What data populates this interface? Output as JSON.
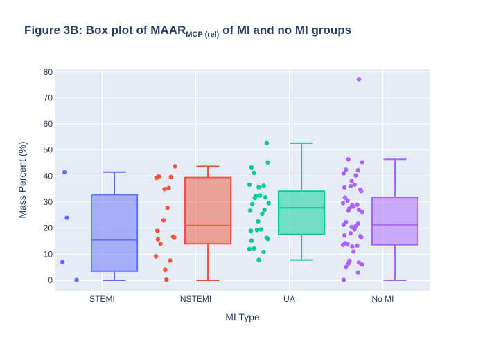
{
  "chart_title": {
    "prefix": "Figure 3B: Box plot of MAAR",
    "subscript": "MCP (rel)",
    "suffix": " of MI and no MI groups"
  },
  "chart_data": {
    "type": "box",
    "title": "Figure 3B: Box plot of MAAR MCP (rel) of MI and no MI groups",
    "xlabel": "MI Type",
    "ylabel": "Mass Percent (%)",
    "ylim": [
      -4,
      81
    ],
    "yticks": [
      0,
      10,
      20,
      30,
      40,
      50,
      60,
      70,
      80
    ],
    "grid": true,
    "legend": "none",
    "categories": [
      "STEMI",
      "NSTEMI",
      "UA",
      "No MI"
    ],
    "series": [
      {
        "category": "STEMI",
        "color": "#636efa",
        "min": 0,
        "q1": 3.5,
        "median": 15.5,
        "q3": 32.8,
        "max": 41.5,
        "points": [
          41.5,
          24,
          7,
          0.1
        ]
      },
      {
        "category": "NSTEMI",
        "color": "#ef553b",
        "min": 0,
        "q1": 14,
        "median": 21,
        "q3": 39.4,
        "max": 43.7,
        "points": [
          43.7,
          39.8,
          39.6,
          39.3,
          35.4,
          35,
          27.8,
          23,
          19,
          16.7,
          16.4,
          15.7,
          14,
          9.2,
          7.6,
          4,
          0.2
        ]
      },
      {
        "category": "UA",
        "color": "#00cc96",
        "min": 7.8,
        "q1": 17.6,
        "median": 27.8,
        "q3": 34.2,
        "max": 52.6,
        "points": [
          52.6,
          45.2,
          43.3,
          41.2,
          36.7,
          36.3,
          35.7,
          32.5,
          32.3,
          31.8,
          31.6,
          29.6,
          29.2,
          27,
          26.7,
          25.5,
          22.6,
          19.5,
          19.3,
          19,
          16.3,
          15.9,
          15.2,
          12.2,
          12,
          10.9,
          7.8
        ]
      },
      {
        "category": "No MI",
        "color": "#ab63fa",
        "min": 0,
        "q1": 13.6,
        "median": 21.3,
        "q3": 31.8,
        "max": 46.4,
        "points": [
          77.2,
          46.4,
          45.3,
          42.4,
          42.2,
          41,
          40.2,
          38.1,
          36.7,
          36.1,
          35.6,
          34.8,
          34.2,
          31.7,
          30.6,
          29.6,
          29,
          28.8,
          28.3,
          27.6,
          27,
          26.7,
          26.2,
          22.3,
          21.7,
          21.3,
          20.8,
          20.5,
          19.5,
          18,
          17.2,
          16.9,
          16.5,
          14.2,
          13.9,
          13.6,
          13.3,
          12.9,
          11,
          7.5,
          6.8,
          6.4,
          6,
          5,
          3,
          0.1
        ]
      }
    ]
  }
}
